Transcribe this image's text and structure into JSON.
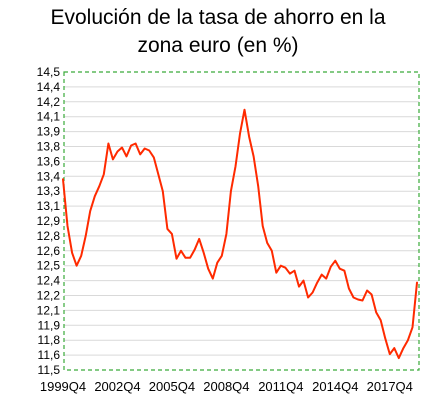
{
  "chart_data": {
    "type": "line",
    "title_line1": "Evolución de la tasa de ahorro en la",
    "title_line2": "zona euro (en %)",
    "xlabel": "",
    "ylabel": "",
    "ylim": [
      11.5,
      14.5
    ],
    "y_ticks": [
      "14,5",
      "14,4",
      "14,2",
      "14,1",
      "13,9",
      "13,8",
      "13,6",
      "13,4",
      "13,3",
      "13,1",
      "12,9",
      "12,8",
      "12,6",
      "12,5",
      "12,4",
      "12,2",
      "12,1",
      "11,9",
      "11,8",
      "11,6",
      "11,5"
    ],
    "x_tick_labels": [
      "1999Q4",
      "2002Q4",
      "2005Q4",
      "2008Q4",
      "2011Q4",
      "2014Q4",
      "2017Q4"
    ],
    "grid": true,
    "line_color": "#ff2a00",
    "border_color": "#3aaa3a",
    "series": [
      {
        "values": [
          13.42,
          12.95,
          12.68,
          12.55,
          12.65,
          12.85,
          13.1,
          13.25,
          13.35,
          13.47,
          13.78,
          13.62,
          13.7,
          13.74,
          13.65,
          13.76,
          13.78,
          13.67,
          13.73,
          13.71,
          13.64,
          13.47,
          13.3,
          12.92,
          12.87,
          12.62,
          12.7,
          12.63,
          12.63,
          12.71,
          12.82,
          12.68,
          12.52,
          12.42,
          12.58,
          12.65,
          12.87,
          13.3,
          13.55,
          13.88,
          14.12,
          13.85,
          13.65,
          13.35,
          12.95,
          12.78,
          12.7,
          12.48,
          12.55,
          12.53,
          12.47,
          12.5,
          12.34,
          12.4,
          12.23,
          12.28,
          12.38,
          12.46,
          12.42,
          12.54,
          12.6,
          12.52,
          12.5,
          12.32,
          12.23,
          12.21,
          12.2,
          12.3,
          12.26,
          12.08,
          12.0,
          11.82,
          11.66,
          11.72,
          11.62,
          11.72,
          11.8,
          11.93,
          12.38
        ]
      }
    ]
  }
}
